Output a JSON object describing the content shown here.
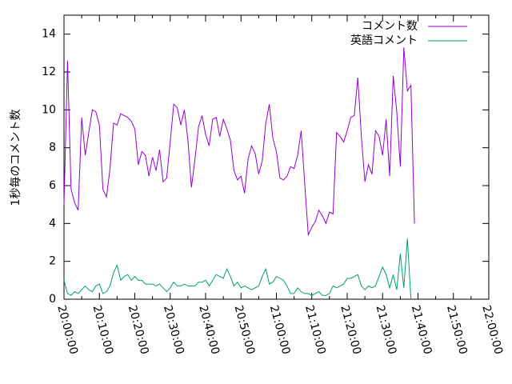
{
  "chart_data": {
    "type": "line",
    "title": "",
    "xlabel": "",
    "ylabel": "1秒毎のコメント数",
    "xlim": [
      "20:00:00",
      "22:00:00"
    ],
    "ylim": [
      0,
      15
    ],
    "x_ticks": [
      "20:00:00",
      "20:10:00",
      "20:20:00",
      "20:30:00",
      "20:40:00",
      "20:50:00",
      "21:00:00",
      "21:10:00",
      "21:20:00",
      "21:30:00",
      "21:40:00",
      "21:50:00",
      "22:00:00"
    ],
    "y_ticks": [
      "0",
      "2",
      "4",
      "6",
      "8",
      "10",
      "12",
      "14"
    ],
    "grid": false,
    "legend_position": "top-right",
    "series": [
      {
        "name": "コメント数",
        "color": "#9400d3",
        "points": [
          [
            "20:00:00",
            5.0
          ],
          [
            "20:01:00",
            12.6
          ],
          [
            "20:02:00",
            5.8
          ],
          [
            "20:03:00",
            5.1
          ],
          [
            "20:04:00",
            4.7
          ],
          [
            "20:05:00",
            9.6
          ],
          [
            "20:06:00",
            7.6
          ],
          [
            "20:07:00",
            8.8
          ],
          [
            "20:08:00",
            10.0
          ],
          [
            "20:09:00",
            9.9
          ],
          [
            "20:10:00",
            9.2
          ],
          [
            "20:11:00",
            5.8
          ],
          [
            "20:12:00",
            5.4
          ],
          [
            "20:13:00",
            6.9
          ],
          [
            "20:14:00",
            9.3
          ],
          [
            "20:15:00",
            9.2
          ],
          [
            "20:16:00",
            9.8
          ],
          [
            "20:17:00",
            9.7
          ],
          [
            "20:18:00",
            9.6
          ],
          [
            "20:19:00",
            9.4
          ],
          [
            "20:20:00",
            9.0
          ],
          [
            "20:21:00",
            7.1
          ],
          [
            "20:22:00",
            7.8
          ],
          [
            "20:23:00",
            7.6
          ],
          [
            "20:24:00",
            6.5
          ],
          [
            "20:25:00",
            7.5
          ],
          [
            "20:26:00",
            6.8
          ],
          [
            "20:27:00",
            7.9
          ],
          [
            "20:28:00",
            6.2
          ],
          [
            "20:29:00",
            6.4
          ],
          [
            "20:30:00",
            8.3
          ],
          [
            "20:31:00",
            10.3
          ],
          [
            "20:32:00",
            10.1
          ],
          [
            "20:33:00",
            9.2
          ],
          [
            "20:34:00",
            10.0
          ],
          [
            "20:35:00",
            8.4
          ],
          [
            "20:36:00",
            5.9
          ],
          [
            "20:37:00",
            7.4
          ],
          [
            "20:38:00",
            9.1
          ],
          [
            "20:39:00",
            9.7
          ],
          [
            "20:40:00",
            8.7
          ],
          [
            "20:41:00",
            8.1
          ],
          [
            "20:42:00",
            9.5
          ],
          [
            "20:43:00",
            9.6
          ],
          [
            "20:44:00",
            8.6
          ],
          [
            "20:45:00",
            9.5
          ],
          [
            "20:46:00",
            9.0
          ],
          [
            "20:47:00",
            8.4
          ],
          [
            "20:48:00",
            6.8
          ],
          [
            "20:49:00",
            6.3
          ],
          [
            "20:50:00",
            6.5
          ],
          [
            "20:51:00",
            5.6
          ],
          [
            "20:52:00",
            7.4
          ],
          [
            "20:53:00",
            8.1
          ],
          [
            "20:54:00",
            7.7
          ],
          [
            "20:55:00",
            6.6
          ],
          [
            "20:56:00",
            7.3
          ],
          [
            "20:57:00",
            9.3
          ],
          [
            "20:58:00",
            10.3
          ],
          [
            "20:59:00",
            8.5
          ],
          [
            "21:00:00",
            7.8
          ],
          [
            "21:01:00",
            6.4
          ],
          [
            "21:02:00",
            6.3
          ],
          [
            "21:03:00",
            6.5
          ],
          [
            "21:04:00",
            7.0
          ],
          [
            "21:05:00",
            6.9
          ],
          [
            "21:06:00",
            7.6
          ],
          [
            "21:07:00",
            8.9
          ],
          [
            "21:08:00",
            6.1
          ],
          [
            "21:09:00",
            3.4
          ],
          [
            "21:10:00",
            3.8
          ],
          [
            "21:11:00",
            4.1
          ],
          [
            "21:12:00",
            4.7
          ],
          [
            "21:13:00",
            4.4
          ],
          [
            "21:14:00",
            4.0
          ],
          [
            "21:15:00",
            4.6
          ],
          [
            "21:16:00",
            4.5
          ],
          [
            "21:17:00",
            8.8
          ],
          [
            "21:18:00",
            8.6
          ],
          [
            "21:19:00",
            8.3
          ],
          [
            "21:20:00",
            8.9
          ],
          [
            "21:21:00",
            9.6
          ],
          [
            "21:22:00",
            9.7
          ],
          [
            "21:23:00",
            11.7
          ],
          [
            "21:24:00",
            8.6
          ],
          [
            "21:25:00",
            6.2
          ],
          [
            "21:26:00",
            7.1
          ],
          [
            "21:27:00",
            6.6
          ],
          [
            "21:28:00",
            8.9
          ],
          [
            "21:29:00",
            8.6
          ],
          [
            "21:30:00",
            7.6
          ],
          [
            "21:31:00",
            9.5
          ],
          [
            "21:32:00",
            6.5
          ],
          [
            "21:33:00",
            11.8
          ],
          [
            "21:34:00",
            9.9
          ],
          [
            "21:35:00",
            7.0
          ],
          [
            "21:36:00",
            13.3
          ],
          [
            "21:37:00",
            11.0
          ],
          [
            "21:38:00",
            11.3
          ],
          [
            "21:39:00",
            4.0
          ]
        ]
      },
      {
        "name": "英語コメント",
        "color": "#009e73",
        "points": [
          [
            "20:00:00",
            1.0
          ],
          [
            "20:01:00",
            0.3
          ],
          [
            "20:02:00",
            0.2
          ],
          [
            "20:03:00",
            0.4
          ],
          [
            "20:04:00",
            0.3
          ],
          [
            "20:05:00",
            0.5
          ],
          [
            "20:06:00",
            0.7
          ],
          [
            "20:07:00",
            0.5
          ],
          [
            "20:08:00",
            0.4
          ],
          [
            "20:09:00",
            0.7
          ],
          [
            "20:10:00",
            0.8
          ],
          [
            "20:11:00",
            0.3
          ],
          [
            "20:12:00",
            0.4
          ],
          [
            "20:13:00",
            0.7
          ],
          [
            "20:14:00",
            1.4
          ],
          [
            "20:15:00",
            1.8
          ],
          [
            "20:16:00",
            1.0
          ],
          [
            "20:17:00",
            1.2
          ],
          [
            "20:18:00",
            1.3
          ],
          [
            "20:19:00",
            1.0
          ],
          [
            "20:20:00",
            1.2
          ],
          [
            "20:21:00",
            1.0
          ],
          [
            "20:22:00",
            1.0
          ],
          [
            "20:23:00",
            0.8
          ],
          [
            "20:24:00",
            0.8
          ],
          [
            "20:25:00",
            0.8
          ],
          [
            "20:26:00",
            0.7
          ],
          [
            "20:27:00",
            0.8
          ],
          [
            "20:28:00",
            0.6
          ],
          [
            "20:29:00",
            0.4
          ],
          [
            "20:30:00",
            0.6
          ],
          [
            "20:31:00",
            0.9
          ],
          [
            "20:32:00",
            0.7
          ],
          [
            "20:33:00",
            0.7
          ],
          [
            "20:34:00",
            0.8
          ],
          [
            "20:35:00",
            0.7
          ],
          [
            "20:36:00",
            0.7
          ],
          [
            "20:37:00",
            0.7
          ],
          [
            "20:38:00",
            0.9
          ],
          [
            "20:39:00",
            0.9
          ],
          [
            "20:40:00",
            1.0
          ],
          [
            "20:41:00",
            0.7
          ],
          [
            "20:42:00",
            1.0
          ],
          [
            "20:43:00",
            1.3
          ],
          [
            "20:44:00",
            1.2
          ],
          [
            "20:45:00",
            1.1
          ],
          [
            "20:46:00",
            1.6
          ],
          [
            "20:47:00",
            1.2
          ],
          [
            "20:48:00",
            0.7
          ],
          [
            "20:49:00",
            0.9
          ],
          [
            "20:50:00",
            0.6
          ],
          [
            "20:51:00",
            0.7
          ],
          [
            "20:52:00",
            0.6
          ],
          [
            "20:53:00",
            0.5
          ],
          [
            "20:54:00",
            0.6
          ],
          [
            "20:55:00",
            0.7
          ],
          [
            "20:56:00",
            1.2
          ],
          [
            "20:57:00",
            1.6
          ],
          [
            "20:58:00",
            0.8
          ],
          [
            "20:59:00",
            0.9
          ],
          [
            "21:00:00",
            1.2
          ],
          [
            "21:01:00",
            1.1
          ],
          [
            "21:02:00",
            1.0
          ],
          [
            "21:03:00",
            0.7
          ],
          [
            "21:04:00",
            0.3
          ],
          [
            "21:05:00",
            0.3
          ],
          [
            "21:06:00",
            0.6
          ],
          [
            "21:07:00",
            0.4
          ],
          [
            "21:08:00",
            0.3
          ],
          [
            "21:09:00",
            0.3
          ],
          [
            "21:10:00",
            0.2
          ],
          [
            "21:11:00",
            0.3
          ],
          [
            "21:12:00",
            0.4
          ],
          [
            "21:13:00",
            0.2
          ],
          [
            "21:14:00",
            0.2
          ],
          [
            "21:15:00",
            0.3
          ],
          [
            "21:16:00",
            0.7
          ],
          [
            "21:17:00",
            0.6
          ],
          [
            "21:18:00",
            0.7
          ],
          [
            "21:19:00",
            0.8
          ],
          [
            "21:20:00",
            1.1
          ],
          [
            "21:21:00",
            1.1
          ],
          [
            "21:22:00",
            1.2
          ],
          [
            "21:23:00",
            1.3
          ],
          [
            "21:24:00",
            0.7
          ],
          [
            "21:25:00",
            0.5
          ],
          [
            "21:26:00",
            0.7
          ],
          [
            "21:27:00",
            0.6
          ],
          [
            "21:28:00",
            0.7
          ],
          [
            "21:29:00",
            1.2
          ],
          [
            "21:30:00",
            1.7
          ],
          [
            "21:31:00",
            1.3
          ],
          [
            "21:32:00",
            0.6
          ],
          [
            "21:33:00",
            1.3
          ],
          [
            "21:34:00",
            0.5
          ],
          [
            "21:35:00",
            2.4
          ],
          [
            "21:36:00",
            0.6
          ],
          [
            "21:37:00",
            3.2
          ],
          [
            "21:38:00",
            0.0
          ]
        ]
      }
    ]
  }
}
